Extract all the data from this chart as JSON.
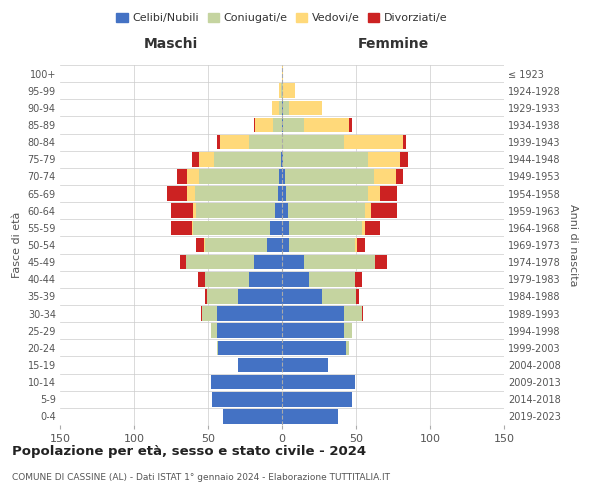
{
  "age_groups": [
    "0-4",
    "5-9",
    "10-14",
    "15-19",
    "20-24",
    "25-29",
    "30-34",
    "35-39",
    "40-44",
    "45-49",
    "50-54",
    "55-59",
    "60-64",
    "65-69",
    "70-74",
    "75-79",
    "80-84",
    "85-89",
    "90-94",
    "95-99",
    "100+"
  ],
  "birth_years": [
    "2019-2023",
    "2014-2018",
    "2009-2013",
    "2004-2008",
    "1999-2003",
    "1994-1998",
    "1989-1993",
    "1984-1988",
    "1979-1983",
    "1974-1978",
    "1969-1973",
    "1964-1968",
    "1959-1963",
    "1954-1958",
    "1949-1953",
    "1944-1948",
    "1939-1943",
    "1934-1938",
    "1929-1933",
    "1924-1928",
    "≤ 1923"
  ],
  "colors": {
    "celibi": "#4472c4",
    "coniugati": "#c5d4a0",
    "vedovi": "#ffd97a",
    "divorziati": "#cc2222"
  },
  "males": {
    "celibi": [
      40,
      47,
      48,
      30,
      43,
      44,
      44,
      30,
      22,
      19,
      10,
      8,
      5,
      3,
      2,
      1,
      0,
      0,
      0,
      0,
      0
    ],
    "coniugati": [
      0,
      0,
      0,
      0,
      1,
      4,
      10,
      21,
      30,
      46,
      42,
      52,
      53,
      56,
      54,
      45,
      22,
      6,
      2,
      1,
      0
    ],
    "vedovi": [
      0,
      0,
      0,
      0,
      0,
      0,
      0,
      0,
      0,
      0,
      1,
      1,
      2,
      5,
      8,
      10,
      20,
      12,
      5,
      1,
      0
    ],
    "divorziati": [
      0,
      0,
      0,
      0,
      0,
      0,
      1,
      1,
      5,
      4,
      5,
      14,
      15,
      14,
      7,
      5,
      2,
      1,
      0,
      0,
      0
    ]
  },
  "females": {
    "celibi": [
      38,
      47,
      49,
      31,
      43,
      42,
      42,
      27,
      18,
      15,
      5,
      5,
      4,
      3,
      2,
      1,
      0,
      1,
      1,
      0,
      0
    ],
    "coniugati": [
      0,
      0,
      0,
      0,
      2,
      5,
      12,
      23,
      31,
      48,
      44,
      49,
      52,
      55,
      60,
      57,
      42,
      14,
      4,
      1,
      0
    ],
    "vedovi": [
      0,
      0,
      0,
      0,
      0,
      0,
      0,
      0,
      0,
      0,
      2,
      2,
      4,
      8,
      15,
      22,
      40,
      30,
      22,
      8,
      1
    ],
    "divorziati": [
      0,
      0,
      0,
      0,
      0,
      0,
      1,
      2,
      5,
      8,
      5,
      10,
      18,
      12,
      5,
      5,
      2,
      2,
      0,
      0,
      0
    ]
  },
  "title": "Popolazione per età, sesso e stato civile - 2024",
  "subtitle": "COMUNE DI CASSINE (AL) - Dati ISTAT 1° gennaio 2024 - Elaborazione TUTTITALIA.IT",
  "xlabel_left": "Maschi",
  "xlabel_right": "Femmine",
  "ylabel_left": "Fasce di età",
  "ylabel_right": "Anni di nascita",
  "xlim": 150,
  "bg_color": "#ffffff",
  "grid_color": "#cccccc",
  "legend_labels": [
    "Celibi/Nubili",
    "Coniugati/e",
    "Vedovi/e",
    "Divorziati/e"
  ]
}
